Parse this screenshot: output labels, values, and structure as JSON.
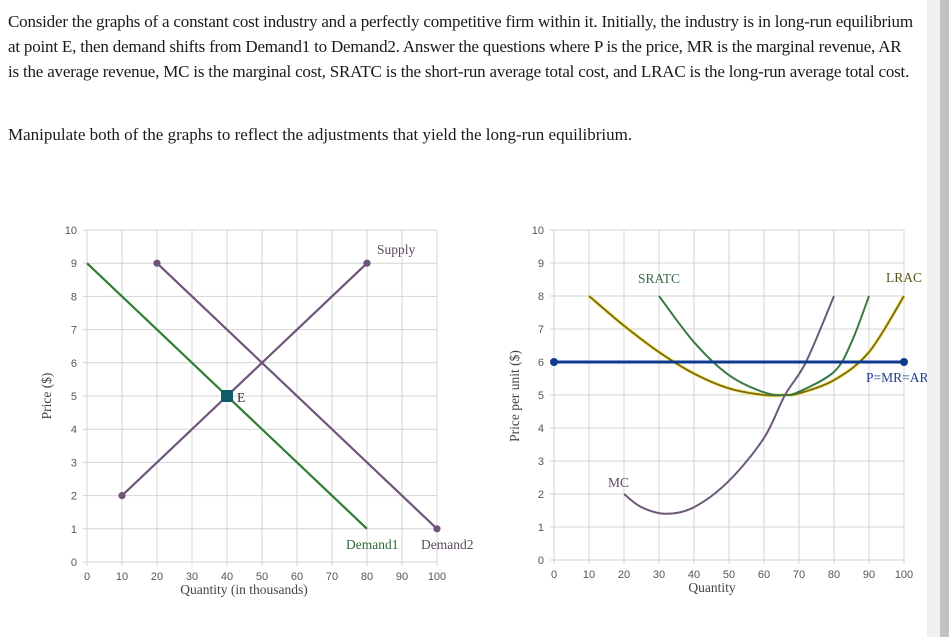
{
  "question": {
    "paragraph": "Consider the graphs of a constant cost industry and a perfectly competitive firm within it. Initially, the industry is in long-run equilibrium at point E, then demand shifts from Demand1 to Demand2. Answer the questions where P is the price, MR is the marginal revenue, AR is the average revenue, MC is the marginal cost, SRATC is the short-run average total cost, and LRAC is the long-run average total cost.",
    "instruction": "Manipulate both of the graphs to reflect the adjustments that yield the long-run equilibrium."
  },
  "colors": {
    "supply": "#6e5479",
    "demand1": "#2e7d32",
    "demand2": "#6e5479",
    "equilibrium_marker": "#0f5a6b",
    "price_line": "#0d3a8f",
    "sratc": "#3a7a45",
    "lrac": "#7a6a10",
    "lrac_glow": "#f2e24a",
    "mc": "#6e5a78",
    "grid": "#d4d4d4"
  },
  "chart_data": [
    {
      "type": "line",
      "title": "Industry",
      "xlabel": "Quantity (in thousands)",
      "ylabel": "Price ($)",
      "xlim": [
        0,
        100
      ],
      "ylim": [
        0,
        10
      ],
      "x_ticks": [
        0,
        10,
        20,
        30,
        40,
        50,
        60,
        70,
        80,
        90,
        100
      ],
      "y_ticks": [
        0,
        1,
        2,
        3,
        4,
        5,
        6,
        7,
        8,
        9,
        10
      ],
      "grid": true,
      "series": [
        {
          "name": "Supply",
          "points": [
            [
              10,
              2
            ],
            [
              80,
              9
            ]
          ],
          "endpoints_marked": true
        },
        {
          "name": "Demand1",
          "points": [
            [
              0,
              9
            ],
            [
              80,
              1
            ]
          ],
          "endpoints_marked": false
        },
        {
          "name": "Demand2",
          "points": [
            [
              20,
              9
            ],
            [
              100,
              1
            ]
          ],
          "endpoints_marked": true
        }
      ],
      "annotations": [
        {
          "label": "E",
          "point": [
            40,
            5
          ],
          "marker": "square"
        }
      ]
    },
    {
      "type": "line",
      "title": "Firm",
      "xlabel": "Quantity",
      "ylabel": "Price per unit ($)",
      "xlim": [
        0,
        100
      ],
      "ylim": [
        0,
        10
      ],
      "x_ticks": [
        0,
        10,
        20,
        30,
        40,
        50,
        60,
        70,
        80,
        90,
        100
      ],
      "y_ticks": [
        0,
        1,
        2,
        3,
        4,
        5,
        6,
        7,
        8,
        9,
        10
      ],
      "grid": true,
      "series": [
        {
          "name": "P=MR=AR",
          "points": [
            [
              0,
              6
            ],
            [
              100,
              6
            ]
          ],
          "endpoints_marked": true
        },
        {
          "name": "LRAC",
          "points": [
            [
              10,
              8
            ],
            [
              20,
              7.1
            ],
            [
              30,
              6.3
            ],
            [
              40,
              5.65
            ],
            [
              50,
              5.2
            ],
            [
              60,
              5.0
            ],
            [
              66,
              5.0
            ],
            [
              70,
              5.05
            ],
            [
              80,
              5.45
            ],
            [
              90,
              6.3
            ],
            [
              100,
              8
            ]
          ]
        },
        {
          "name": "SRATC",
          "points": [
            [
              30,
              8
            ],
            [
              40,
              6.6
            ],
            [
              50,
              5.6
            ],
            [
              60,
              5.08
            ],
            [
              66,
              5.0
            ],
            [
              70,
              5.1
            ],
            [
              80,
              5.7
            ],
            [
              85,
              6.6
            ],
            [
              90,
              8
            ]
          ]
        },
        {
          "name": "MC",
          "points": [
            [
              20,
              2
            ],
            [
              25,
              1.6
            ],
            [
              32,
              1.4
            ],
            [
              40,
              1.6
            ],
            [
              50,
              2.4
            ],
            [
              60,
              3.7
            ],
            [
              66,
              5.0
            ],
            [
              72,
              6.0
            ],
            [
              80,
              8
            ]
          ]
        }
      ]
    }
  ],
  "labels": {
    "left": {
      "ylabel": "Price ($)",
      "xlabel": "Quantity (in thousands)",
      "supply": "Supply",
      "demand1": "Demand1",
      "demand2": "Demand2",
      "equilibrium": "E"
    },
    "right": {
      "ylabel": "Price per unit ($)",
      "xlabel": "Quantity",
      "sratc": "SRATC",
      "lrac": "LRAC",
      "mc": "MC",
      "price_line": "P=MR=AR"
    }
  }
}
